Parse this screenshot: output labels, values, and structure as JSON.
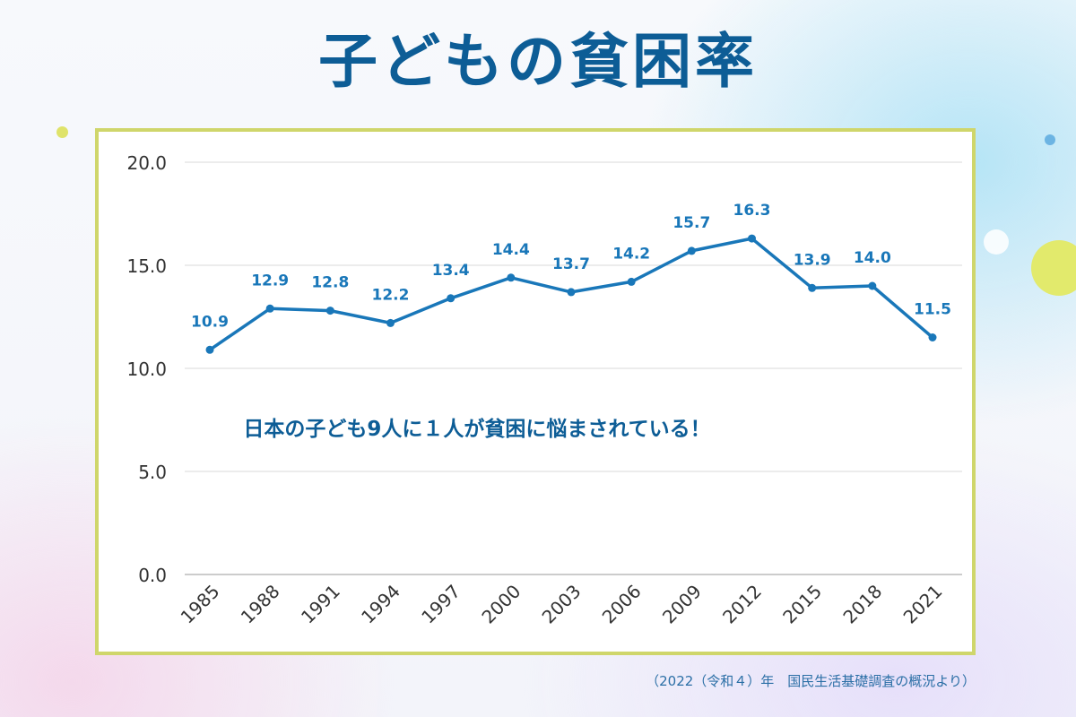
{
  "title": "子どもの貧困率",
  "source_note": "（2022（令和４）年　国民生活基礎調査の概況より）",
  "colors": {
    "title": "#0d5d96",
    "line": "#1977b9",
    "label": "#1977b9",
    "frame": "#cfd66b",
    "grid": "#d9d9d9",
    "annotation": "#0d5d96"
  },
  "chart_data": {
    "type": "line",
    "x": [
      "1985",
      "1988",
      "1991",
      "1994",
      "1997",
      "2000",
      "2003",
      "2006",
      "2009",
      "2012",
      "2015",
      "2018",
      "2021"
    ],
    "series": [
      {
        "values": [
          10.9,
          12.9,
          12.8,
          12.2,
          13.4,
          14.4,
          13.7,
          14.2,
          15.7,
          16.3,
          13.9,
          14.0,
          11.5
        ],
        "data_labels": [
          "10.9",
          "12.9",
          "12.8",
          "12.2",
          "13.4",
          "14.4",
          "13.7",
          "14.2",
          "15.7",
          "16.3",
          "13.9",
          "14.0",
          "11.5"
        ]
      }
    ],
    "y_ticks": [
      "0.0",
      "5.0",
      "10.0",
      "15.0",
      "20.0"
    ],
    "ylim": [
      0,
      20
    ],
    "grid": true,
    "annotation": "日本の子ども9人に１人が貧困に悩まされている！"
  }
}
